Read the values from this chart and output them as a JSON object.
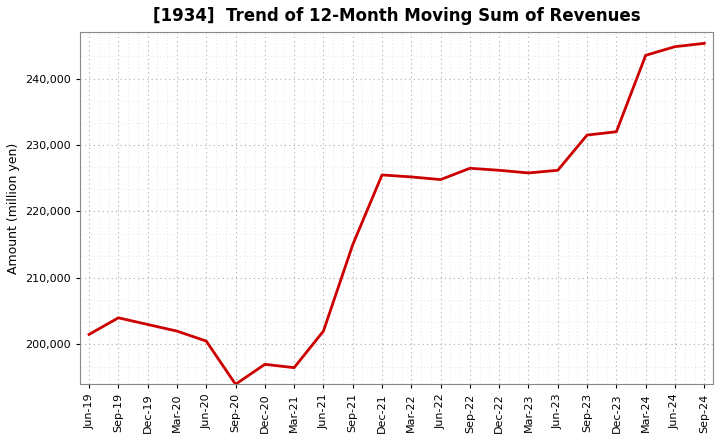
{
  "title": "[1934]  Trend of 12-Month Moving Sum of Revenues",
  "ylabel": "Amount (million yen)",
  "line_color": "#cc0000",
  "line_width": 2.0,
  "background_color": "#ffffff",
  "grid_color": "#999999",
  "ylim": [
    194000,
    247000
  ],
  "yticks": [
    200000,
    210000,
    220000,
    230000,
    240000
  ],
  "labels": [
    "Jun-19",
    "Sep-19",
    "Dec-19",
    "Mar-20",
    "Jun-20",
    "Sep-20",
    "Dec-20",
    "Mar-21",
    "Jun-21",
    "Sep-21",
    "Dec-21",
    "Mar-22",
    "Jun-22",
    "Sep-22",
    "Dec-22",
    "Mar-23",
    "Jun-23",
    "Sep-23",
    "Dec-23",
    "Mar-24",
    "Jun-24",
    "Sep-24"
  ],
  "values": [
    201500,
    204000,
    203000,
    202000,
    200500,
    194000,
    197000,
    196500,
    202000,
    215000,
    225500,
    225200,
    224800,
    226500,
    226200,
    225800,
    226200,
    231500,
    232000,
    243500,
    244800,
    245300
  ]
}
